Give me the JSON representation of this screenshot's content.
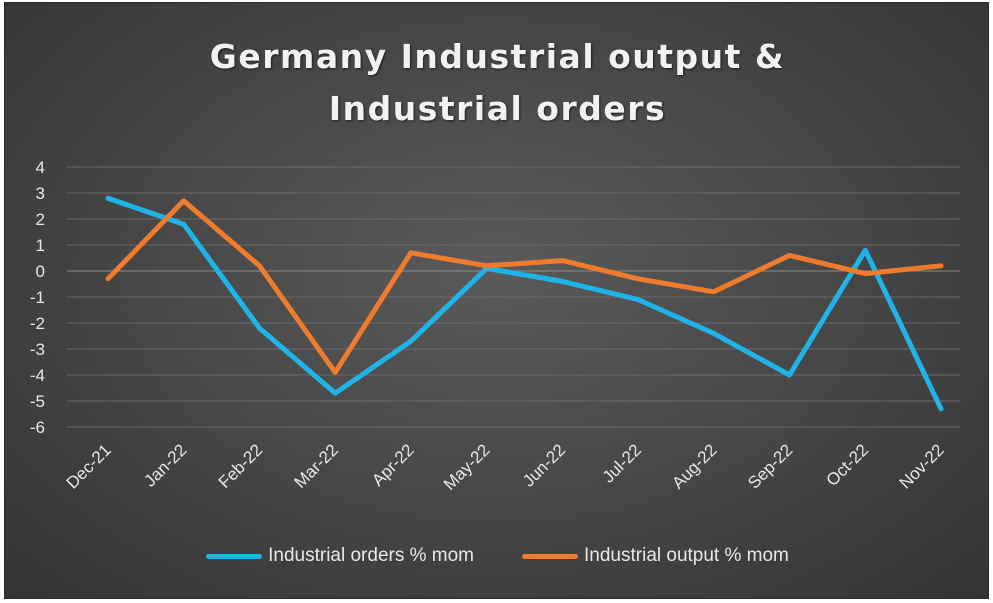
{
  "chart_data": {
    "type": "line",
    "title_lines": [
      "Germany Industrial output &",
      "Industrial orders"
    ],
    "categories": [
      "Dec-21",
      "Jan-22",
      "Feb-22",
      "Mar-22",
      "Apr-22",
      "May-22",
      "Jun-22",
      "Jul-22",
      "Aug-22",
      "Sep-22",
      "Oct-22",
      "Nov-22"
    ],
    "ylim": [
      -6,
      4
    ],
    "yticks": [
      -6,
      -5,
      -4,
      -3,
      -2,
      -1,
      0,
      1,
      2,
      3,
      4
    ],
    "grid": true,
    "legend_position": "bottom",
    "series": [
      {
        "name": "Industrial orders % mom",
        "color": "#1fb4e8",
        "values": [
          2.8,
          1.8,
          -2.2,
          -4.7,
          -2.7,
          0.1,
          -0.4,
          -1.1,
          -2.4,
          -4.0,
          0.8,
          -5.3
        ]
      },
      {
        "name": "Industrial output % mom",
        "color": "#ef7b2c",
        "values": [
          -0.3,
          2.7,
          0.2,
          -3.9,
          0.7,
          0.2,
          0.4,
          -0.3,
          -0.8,
          0.6,
          -0.1,
          0.2
        ]
      }
    ]
  }
}
